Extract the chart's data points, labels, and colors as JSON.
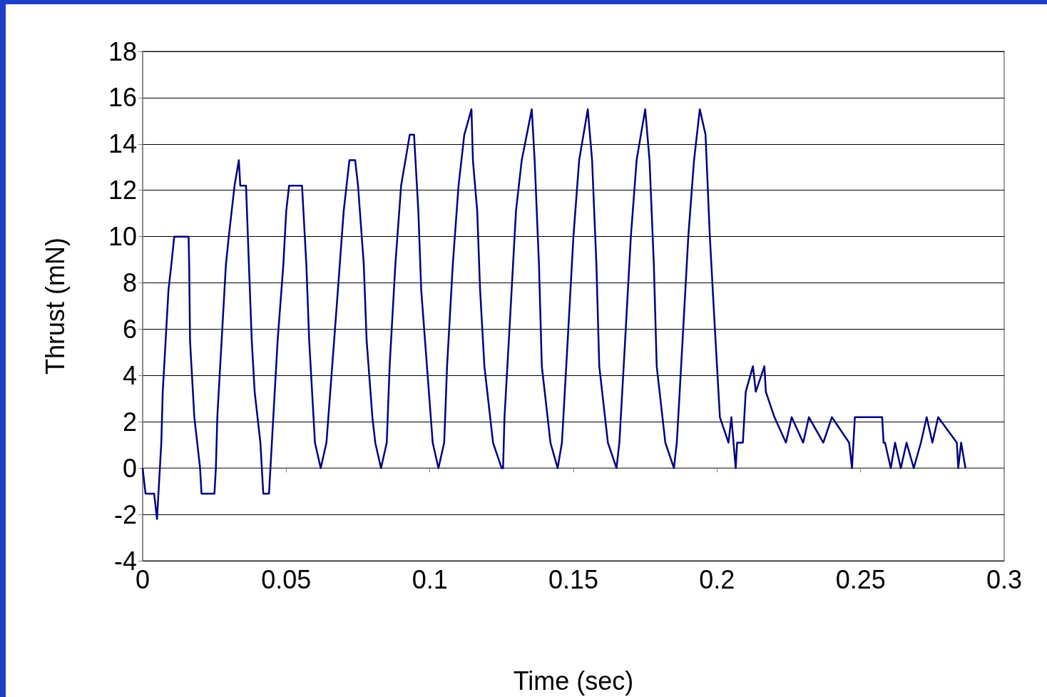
{
  "chart_data": {
    "type": "line",
    "xlabel": "Time (sec)",
    "ylabel": "Thrust (mN)",
    "color": "#000080",
    "marker": "none",
    "grid": "y",
    "xlim": [
      0,
      0.3
    ],
    "xticks": [
      0,
      0.05,
      0.1,
      0.15,
      0.2,
      0.25,
      0.3
    ],
    "ylim": [
      -4,
      18
    ],
    "yticks": [
      -4,
      -2,
      0,
      2,
      4,
      6,
      8,
      10,
      12,
      14,
      16,
      18
    ],
    "x": [
      0,
      0.001,
      0.004,
      0.005,
      0.006,
      0.0065,
      0.007,
      0.008,
      0.009,
      0.01,
      0.011,
      0.016,
      0.0162,
      0.0165,
      0.017,
      0.018,
      0.019,
      0.02,
      0.0205,
      0.025,
      0.0255,
      0.026,
      0.027,
      0.028,
      0.029,
      0.03,
      0.031,
      0.032,
      0.0335,
      0.034,
      0.036,
      0.037,
      0.038,
      0.039,
      0.041,
      0.0415,
      0.042,
      0.044,
      0.0445,
      0.0455,
      0.047,
      0.049,
      0.05,
      0.051,
      0.0555,
      0.057,
      0.058,
      0.0595,
      0.06,
      0.062,
      0.064,
      0.066,
      0.068,
      0.07,
      0.072,
      0.074,
      0.075,
      0.077,
      0.078,
      0.08,
      0.081,
      0.083,
      0.085,
      0.086,
      0.088,
      0.09,
      0.093,
      0.0945,
      0.096,
      0.097,
      0.099,
      0.101,
      0.103,
      0.105,
      0.106,
      0.108,
      0.11,
      0.112,
      0.1145,
      0.115,
      0.1165,
      0.1175,
      0.119,
      0.122,
      0.125,
      0.1255,
      0.126,
      0.128,
      0.13,
      0.132,
      0.1355,
      0.1365,
      0.138,
      0.139,
      0.142,
      0.1445,
      0.146,
      0.148,
      0.15,
      0.152,
      0.155,
      0.1565,
      0.158,
      0.159,
      0.162,
      0.165,
      0.166,
      0.168,
      0.17,
      0.172,
      0.175,
      0.1765,
      0.178,
      0.179,
      0.182,
      0.185,
      0.186,
      0.188,
      0.19,
      0.192,
      0.194,
      0.196,
      0.1975,
      0.199,
      0.201,
      0.204,
      0.205,
      0.2065,
      0.207,
      0.209,
      0.21,
      0.2125,
      0.2135,
      0.2165,
      0.217,
      0.22,
      0.224,
      0.226,
      0.23,
      0.232,
      0.237,
      0.24,
      0.246,
      0.247,
      0.2475,
      0.248,
      0.2575,
      0.258,
      0.2585,
      0.2605,
      0.262,
      0.264,
      0.266,
      0.2685,
      0.271,
      0.273,
      0.275,
      0.277,
      0.2835,
      0.284,
      0.285,
      0.2865
    ],
    "values": [
      0,
      -1.1,
      -1.1,
      -2.2,
      0,
      1.1,
      3.3,
      5.5,
      7.7,
      8.8,
      10,
      10,
      8.8,
      5.5,
      4.4,
      2.2,
      1.1,
      0,
      -1.1,
      -1.1,
      0,
      2.2,
      4.4,
      6.6,
      8.8,
      10,
      11.1,
      12.2,
      13.3,
      12.2,
      12.2,
      8.8,
      5.5,
      3.3,
      1.1,
      0,
      -1.1,
      -1.1,
      0,
      2.2,
      5.5,
      8.8,
      11.1,
      12.2,
      12.2,
      8.8,
      5.5,
      2.2,
      1.1,
      0,
      1.1,
      4.4,
      7.7,
      11.1,
      13.3,
      13.3,
      12.2,
      8.8,
      5.5,
      2.2,
      1.1,
      0,
      1.1,
      4.4,
      8.8,
      12.2,
      14.4,
      14.4,
      11.1,
      7.7,
      4.4,
      1.1,
      0,
      1.1,
      4.4,
      8.8,
      12.2,
      14.4,
      15.5,
      13.3,
      11.1,
      7.7,
      4.4,
      1.1,
      0,
      0,
      2.2,
      6.6,
      11.1,
      13.3,
      15.5,
      13.3,
      8.8,
      4.4,
      1.1,
      0,
      1.1,
      5.5,
      10,
      13.3,
      15.5,
      13.3,
      8.8,
      4.4,
      1.1,
      0,
      1.1,
      5.5,
      10,
      13.3,
      15.5,
      13.3,
      8.8,
      4.4,
      1.1,
      0,
      1.1,
      5.5,
      10,
      13.3,
      15.5,
      14.4,
      10,
      6.6,
      2.2,
      1.1,
      2.2,
      0,
      1.1,
      1.1,
      3.3,
      4.4,
      3.3,
      4.4,
      3.3,
      2.2,
      1.1,
      2.2,
      1.1,
      2.2,
      1.1,
      2.2,
      1.1,
      0,
      1.1,
      2.2,
      2.2,
      1.1,
      1.1,
      0,
      1.1,
      0,
      1.1,
      0,
      1.1,
      2.2,
      1.1,
      2.2,
      1.1,
      0,
      1.1,
      0
    ]
  }
}
